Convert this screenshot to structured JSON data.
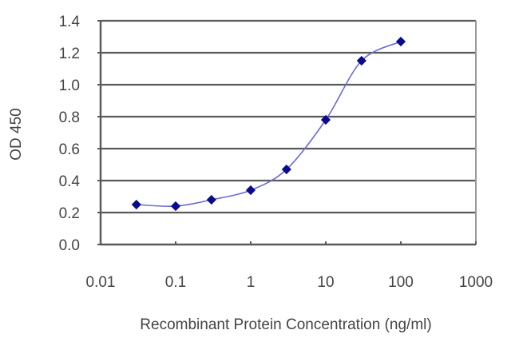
{
  "chart_data": {
    "type": "line",
    "title": "",
    "xlabel": "Recombinant Protein Concentration (ng/ml)",
    "ylabel": "OD 450",
    "xscale": "log",
    "xlim": [
      0.01,
      1000
    ],
    "ylim": [
      0.0,
      1.4
    ],
    "grid": true,
    "legend": null,
    "x_ticks": [
      "0.01",
      "0.1",
      "1",
      "10",
      "100",
      "1000"
    ],
    "y_ticks": [
      "0.0",
      "0.2",
      "0.4",
      "0.6",
      "0.8",
      "1.0",
      "1.2",
      "1.4"
    ],
    "series": [
      {
        "name": "OD 450",
        "x": [
          0.03,
          0.1,
          0.3,
          1,
          3,
          10,
          30,
          100
        ],
        "values": [
          0.25,
          0.24,
          0.28,
          0.34,
          0.47,
          0.78,
          1.15,
          1.27
        ]
      }
    ]
  },
  "colors": {
    "line": "#6b6bd6",
    "marker": "#0a0a8c",
    "grid": "#5a5a5a",
    "axis": "#5a5a5a",
    "text": "#444444"
  }
}
